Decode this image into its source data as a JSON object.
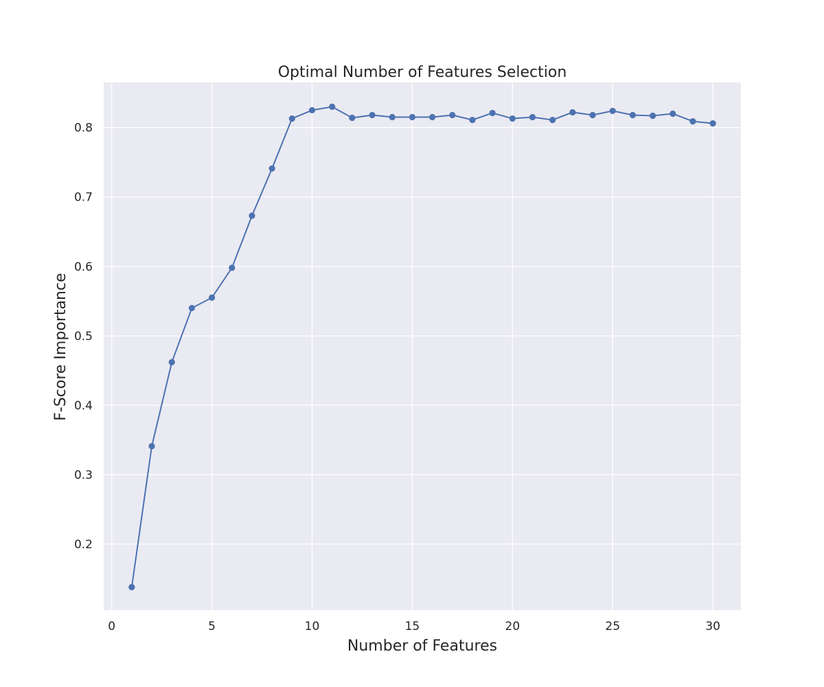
{
  "chart_data": {
    "type": "line",
    "title": "Optimal Number of Features Selection",
    "xlabel": "Number of Features",
    "ylabel": "F-Score Importance",
    "xlim": [
      -0.4,
      31.4
    ],
    "ylim": [
      0.105,
      0.865
    ],
    "xticks": [
      0,
      5,
      10,
      15,
      20,
      25,
      30
    ],
    "yticks": [
      0.2,
      0.3,
      0.4,
      0.5,
      0.6,
      0.7,
      0.8
    ],
    "grid": true,
    "colors": {
      "series": "#4c72b0",
      "plot_background": "#eaeaf2",
      "grid": "#ffffff"
    },
    "x": [
      1,
      2,
      3,
      4,
      5,
      6,
      7,
      8,
      9,
      10,
      11,
      12,
      13,
      14,
      15,
      16,
      17,
      18,
      19,
      20,
      21,
      22,
      23,
      24,
      25,
      26,
      27,
      28,
      29,
      30
    ],
    "series": [
      {
        "values": [
          0.138,
          0.341,
          0.462,
          0.54,
          0.555,
          0.598,
          0.673,
          0.741,
          0.813,
          0.825,
          0.83,
          0.814,
          0.818,
          0.815,
          0.815,
          0.815,
          0.818,
          0.811,
          0.821,
          0.813,
          0.815,
          0.811,
          0.822,
          0.818,
          0.824,
          0.818,
          0.817,
          0.82,
          0.809,
          0.806
        ]
      }
    ]
  }
}
